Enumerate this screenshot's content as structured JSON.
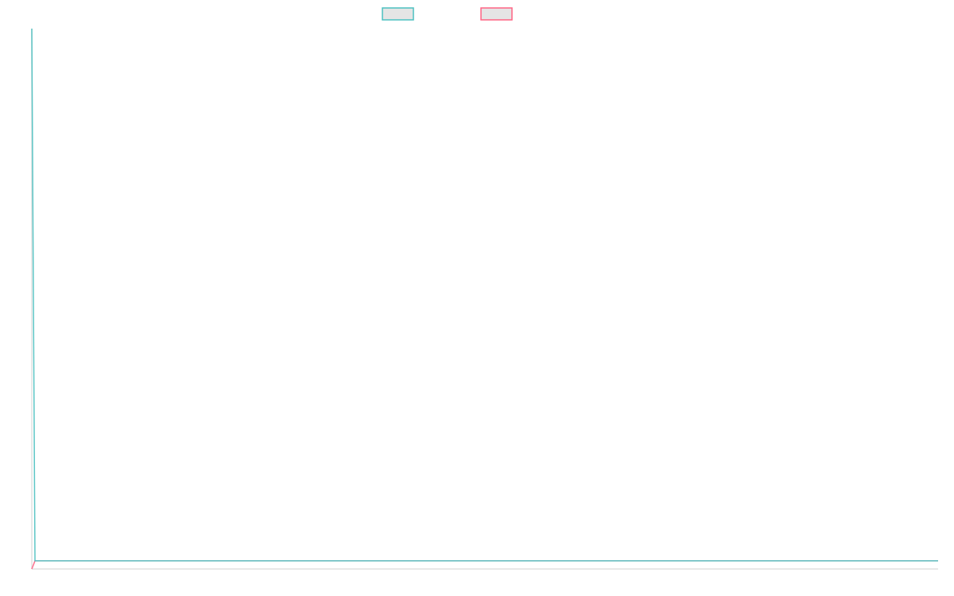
{
  "chart_data": {
    "type": "line",
    "title": "",
    "xlabel": "",
    "ylabel": "",
    "x": [
      0,
      1,
      285
    ],
    "xlim": [
      0,
      285
    ],
    "ylim": [
      0,
      100
    ],
    "grid": false,
    "legend_placement": "top",
    "series": [
      {
        "color": "#4bc0c0",
        "values": [
          100,
          1.5,
          1.5
        ]
      },
      {
        "color": "#ff6384",
        "values": [
          0,
          1.5,
          1.5
        ]
      }
    ],
    "legend_box_fill": "#e5e5e5",
    "axis_color": "#e0e0e0"
  }
}
